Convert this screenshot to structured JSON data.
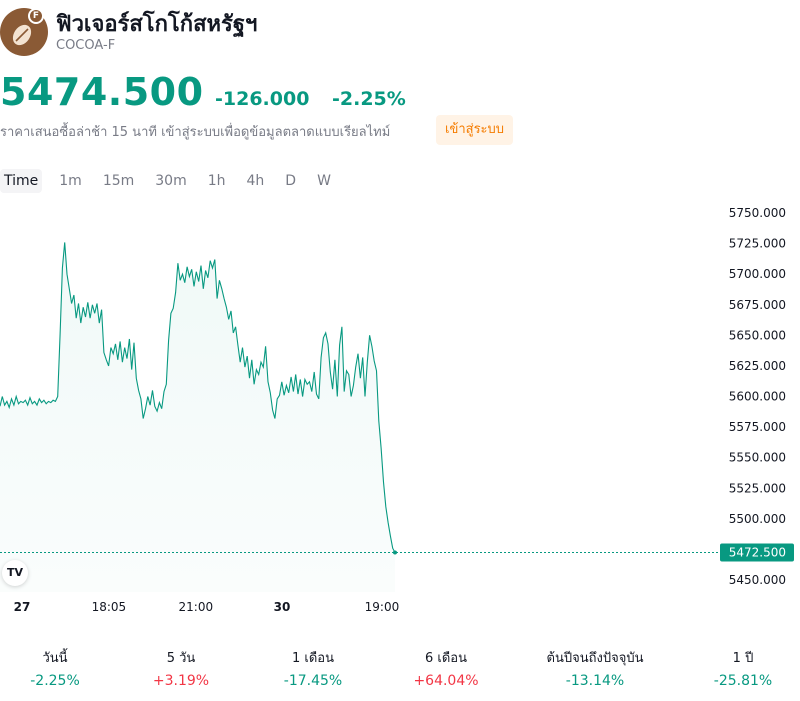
{
  "header": {
    "title": "ฟิวเจอร์สโกโก้สหรัฐฯ",
    "symbol": "COCOA-F",
    "logo_badge": "F",
    "logo_icon": "cocoa-bean-icon"
  },
  "quote": {
    "price": "5474.500",
    "change": "-126.000",
    "change_pct": "-2.25%",
    "delay_note": "ราคาเสนอซื้อล่าช้า 15 นาที เข้าสู่ระบบเพื่อดูข้อมูลตลาดแบบเรียลไทม์",
    "login_label": "เข้าสู่ระบบ"
  },
  "timeframes": [
    "Time",
    "1m",
    "15m",
    "30m",
    "1h",
    "4h",
    "D",
    "W"
  ],
  "active_timeframe": "Time",
  "colors": {
    "accent": "#089981",
    "negative": "#f23645",
    "login": "#f57c00"
  },
  "branding": {
    "tv_logo": "TV"
  },
  "chart_data": {
    "type": "area",
    "y_ticks": [
      "5750.000",
      "5725.000",
      "5700.000",
      "5675.000",
      "5650.000",
      "5625.000",
      "5600.000",
      "5575.000",
      "5550.000",
      "5525.000",
      "5500.000",
      "5450.000"
    ],
    "ylim": [
      5438,
      5780
    ],
    "x_ticks": [
      {
        "label": "27",
        "bold": true,
        "t": 0
      },
      {
        "label": "18:05",
        "bold": false,
        "t": 0.233
      },
      {
        "label": "21:00",
        "bold": false,
        "t": 0.466
      },
      {
        "label": "30",
        "bold": true,
        "t": 0.697
      },
      {
        "label": "19:00",
        "bold": false,
        "t": 0.965
      }
    ],
    "last_price_label": "5472.500",
    "last_price": 5472.5,
    "series": [
      {
        "values": [
          5592,
          5600,
          5593,
          5596,
          5591,
          5598,
          5593,
          5600,
          5594,
          5596,
          5595,
          5597,
          5593,
          5599,
          5594,
          5596,
          5593,
          5598,
          5595,
          5597,
          5594,
          5596,
          5595,
          5597,
          5596,
          5600,
          5651,
          5705,
          5726,
          5700,
          5688,
          5676,
          5683,
          5664,
          5676,
          5660,
          5673,
          5665,
          5677,
          5664,
          5675,
          5668,
          5676,
          5660,
          5671,
          5636,
          5630,
          5625,
          5640,
          5635,
          5643,
          5630,
          5645,
          5628,
          5640,
          5631,
          5647,
          5622,
          5644,
          5615,
          5605,
          5598,
          5582,
          5590,
          5600,
          5593,
          5605,
          5592,
          5588,
          5595,
          5590,
          5604,
          5610,
          5646,
          5668,
          5672,
          5685,
          5709,
          5695,
          5700,
          5693,
          5706,
          5698,
          5704,
          5690,
          5702,
          5694,
          5707,
          5688,
          5703,
          5697,
          5711,
          5705,
          5712,
          5680,
          5695,
          5688,
          5680,
          5673,
          5663,
          5670,
          5652,
          5657,
          5642,
          5628,
          5640,
          5624,
          5633,
          5615,
          5630,
          5610,
          5622,
          5618,
          5628,
          5624,
          5641,
          5612,
          5603,
          5589,
          5582,
          5598,
          5601,
          5612,
          5601,
          5609,
          5603,
          5616,
          5604,
          5618,
          5602,
          5614,
          5600,
          5614,
          5610,
          5612,
          5604,
          5620,
          5602,
          5598,
          5632,
          5648,
          5652,
          5643,
          5620,
          5606,
          5630,
          5600,
          5642,
          5657,
          5604,
          5621,
          5618,
          5600,
          5609,
          5624,
          5635,
          5615,
          5632,
          5600,
          5628,
          5650,
          5641,
          5629,
          5621,
          5580,
          5558,
          5530,
          5510,
          5497,
          5486,
          5476,
          5472.5
        ]
      }
    ]
  },
  "performance": [
    {
      "label": "วันนี้",
      "value": "-2.25%",
      "direction": "down"
    },
    {
      "label": "5 วัน",
      "value": "+3.19%",
      "direction": "up"
    },
    {
      "label": "1 เดือน",
      "value": "-17.45%",
      "direction": "down"
    },
    {
      "label": "6 เดือน",
      "value": "+64.04%",
      "direction": "up"
    },
    {
      "label": "ต้นปีจนถึงปัจจุบัน",
      "value": "-13.14%",
      "direction": "down"
    },
    {
      "label": "1 ปี",
      "value": "-25.81%",
      "direction": "down"
    }
  ]
}
